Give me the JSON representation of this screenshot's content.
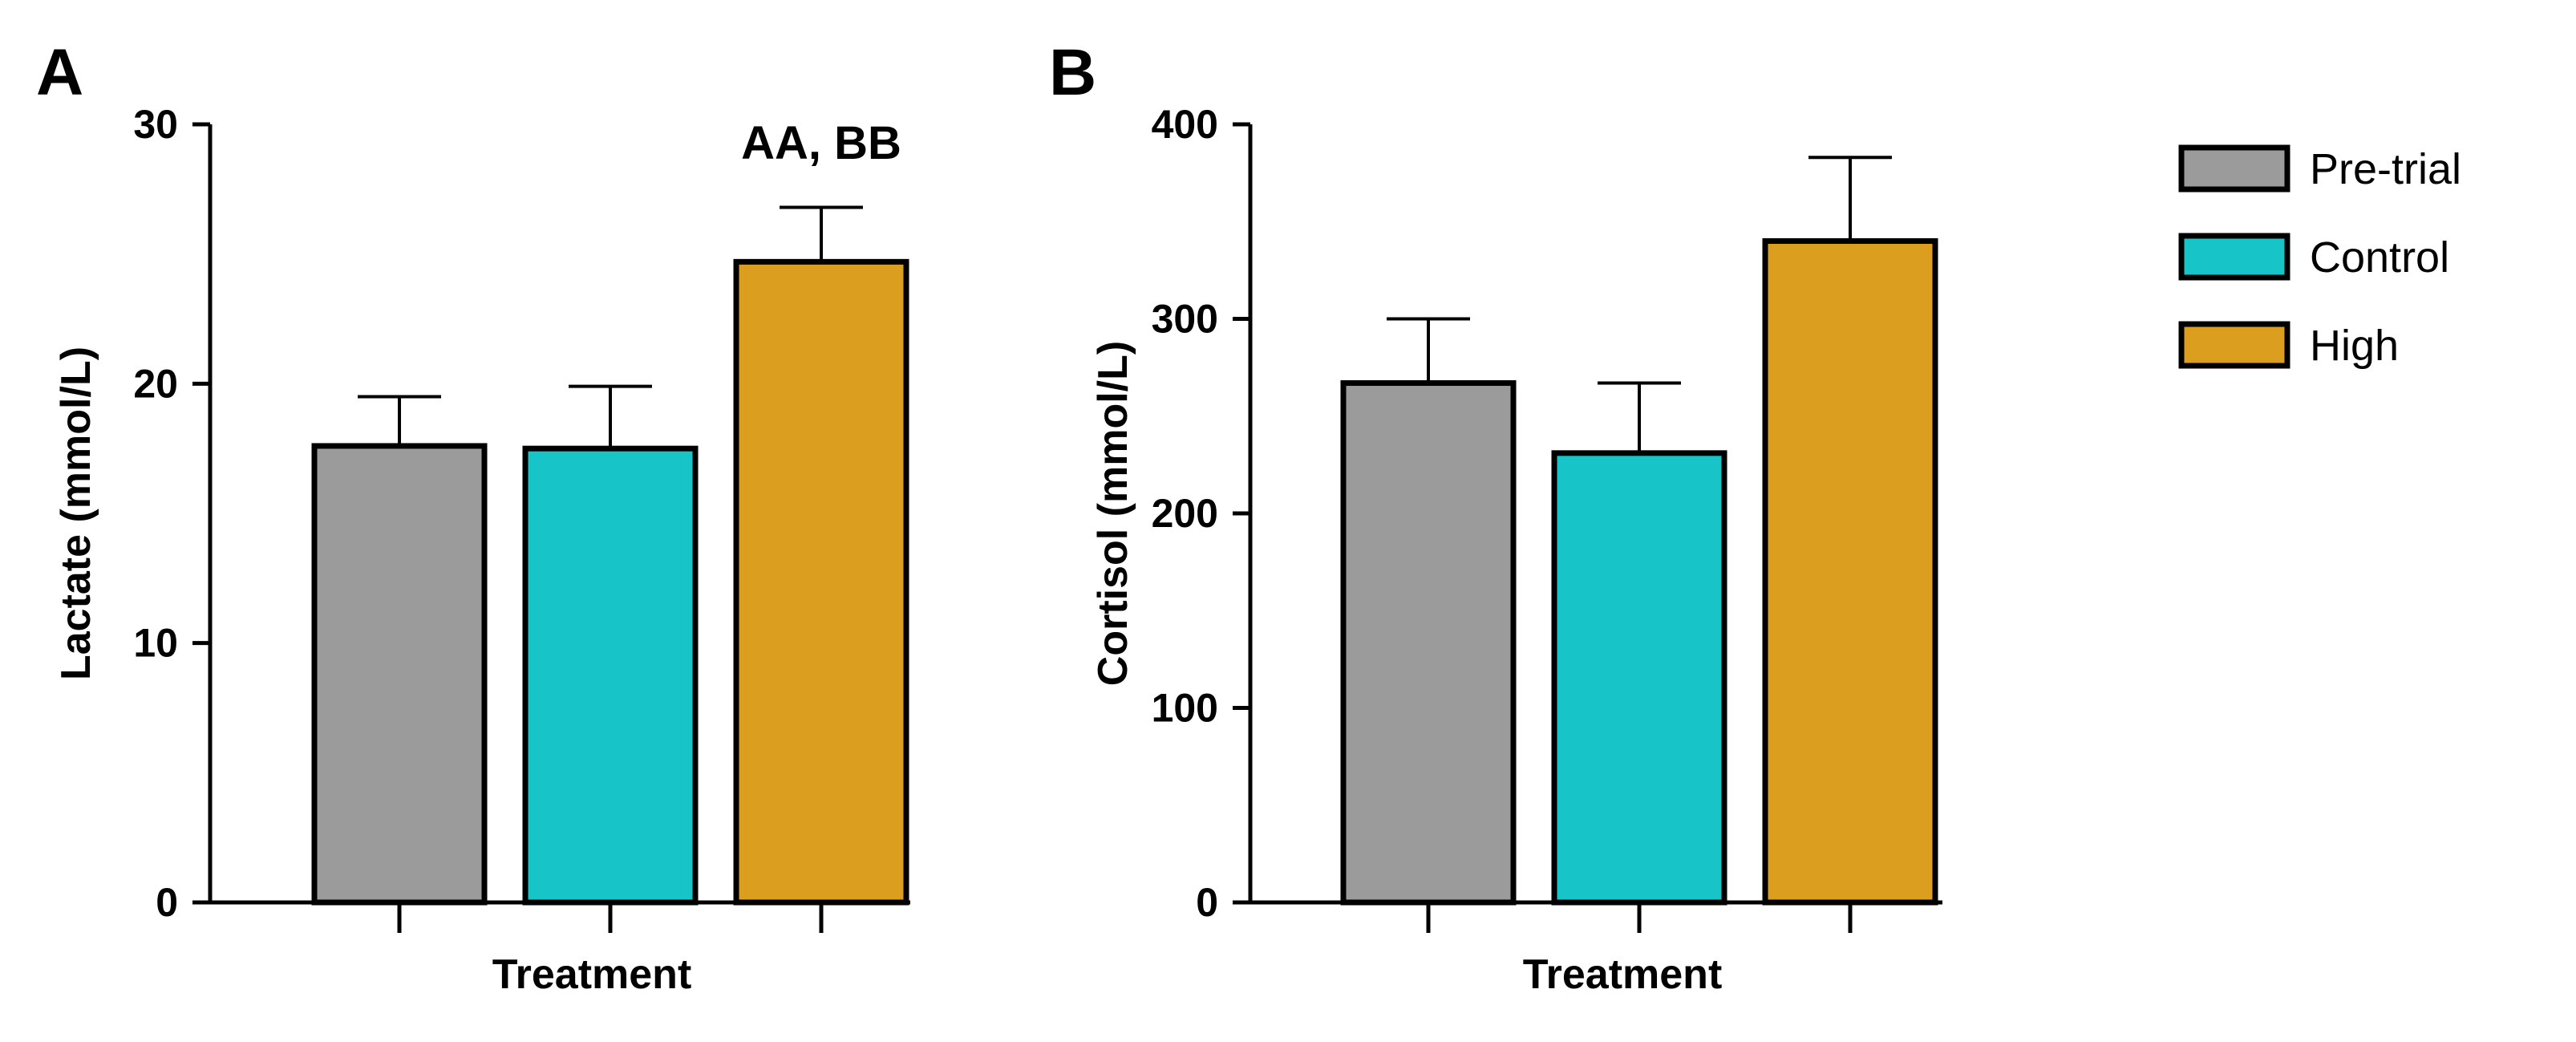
{
  "chart_data": [
    {
      "type": "bar",
      "panel": "A",
      "title": "",
      "xlabel": "Treatment",
      "ylabel": "Lactate (mmol/L)",
      "ylim": [
        0,
        30
      ],
      "yticks": [
        0,
        10,
        20,
        30
      ],
      "categories": [
        "Pre-trial",
        "Control",
        "High"
      ],
      "values": [
        17.6,
        17.5,
        24.7
      ],
      "errors": [
        1.9,
        2.4,
        2.1
      ],
      "annotation": {
        "text": "AA, BB",
        "category": "High"
      },
      "grid": false
    },
    {
      "type": "bar",
      "panel": "B",
      "title": "",
      "xlabel": "Treatment",
      "ylabel": "Cortisol (mmol/L)",
      "ylim": [
        0,
        400
      ],
      "yticks": [
        0,
        100,
        200,
        300,
        400
      ],
      "categories": [
        "Pre-trial",
        "Control",
        "High"
      ],
      "values": [
        267,
        231,
        340
      ],
      "errors": [
        33,
        36,
        43
      ],
      "grid": false
    }
  ],
  "legend": {
    "placement": "right",
    "items": [
      {
        "label": "Pre-trial",
        "color": "#9b9b9b"
      },
      {
        "label": "Control",
        "color": "#17c4c8"
      },
      {
        "label": "High",
        "color": "#dc9e1f"
      }
    ]
  }
}
